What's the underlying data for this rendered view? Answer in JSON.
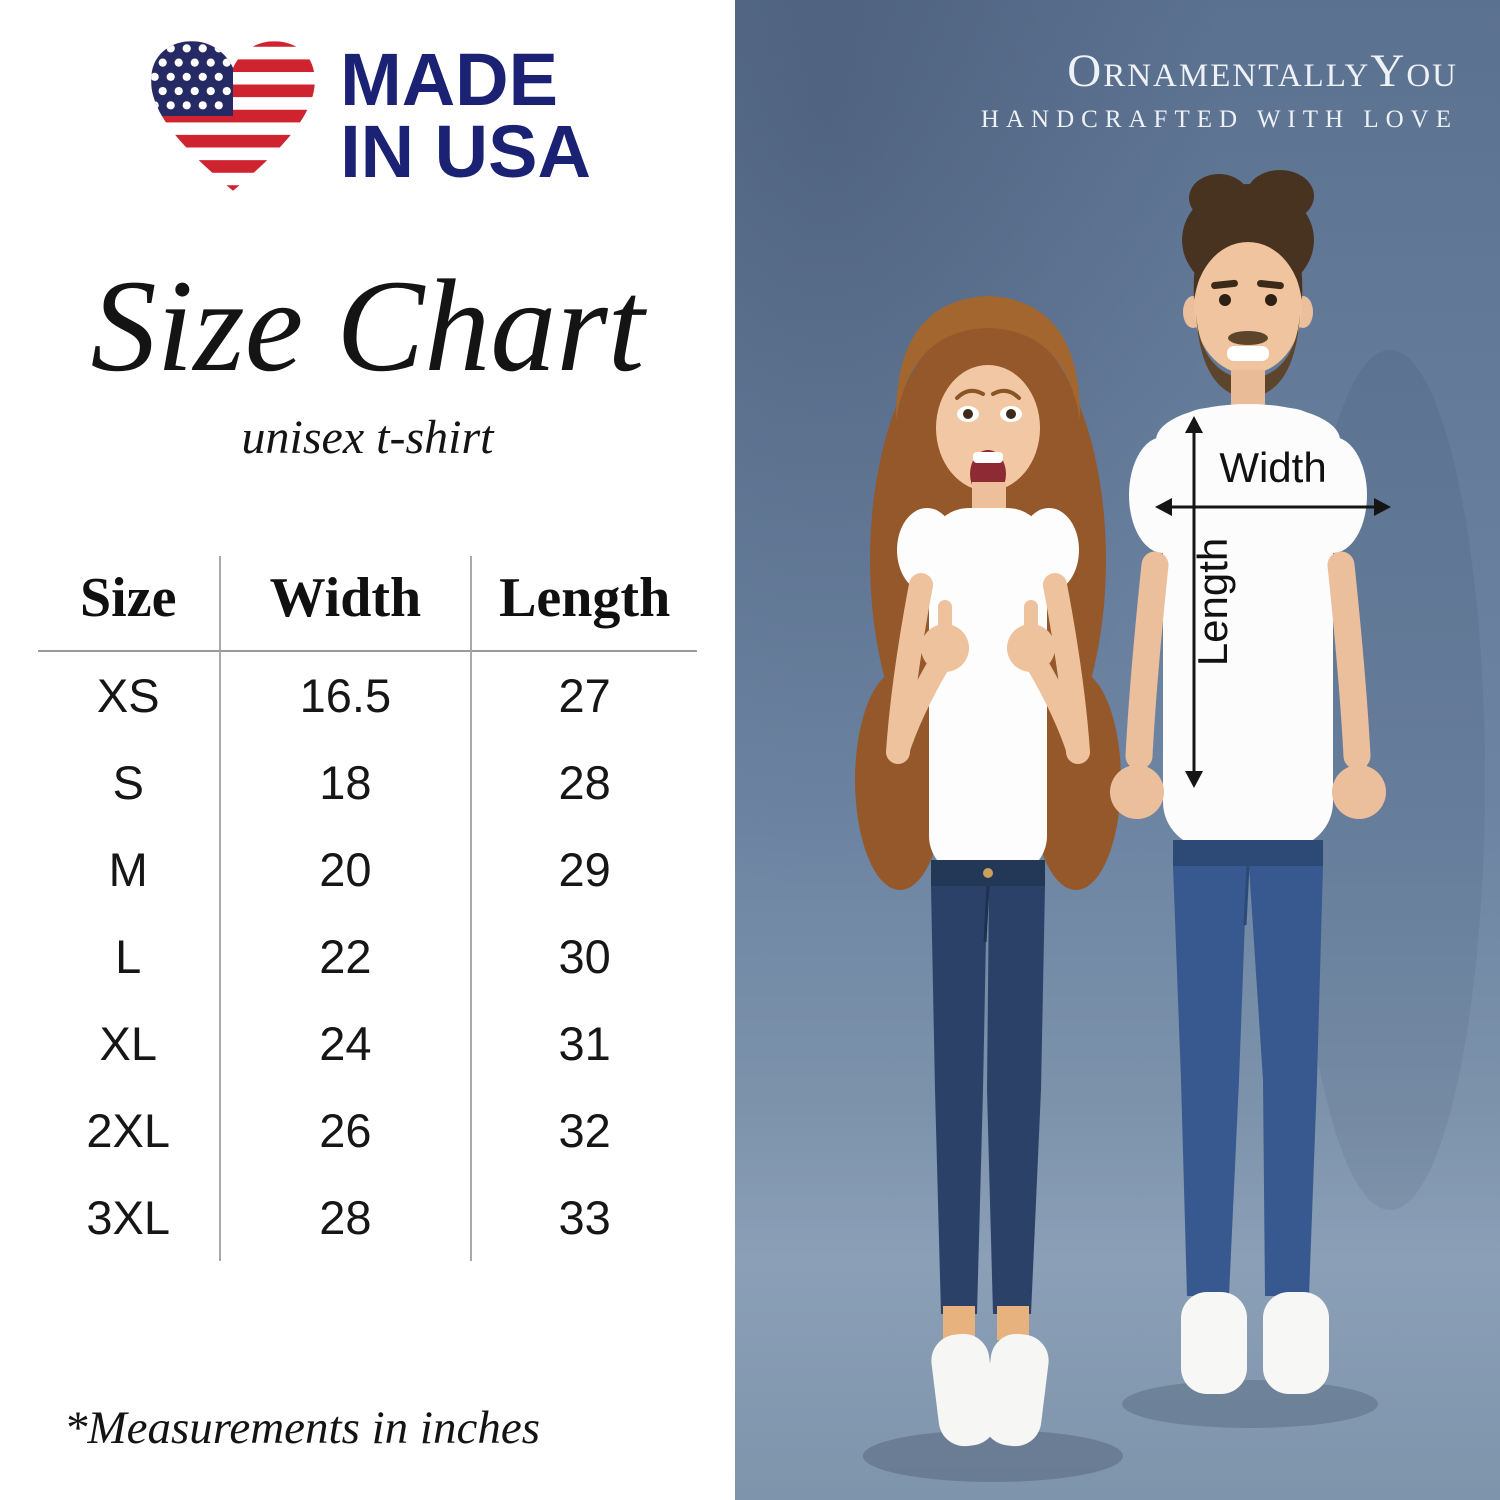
{
  "badge": {
    "line1": "MADE",
    "line2": "IN USA",
    "icon": "usa-flag-heart-icon",
    "flag_red": "#cf2430",
    "flag_blue": "#252a64",
    "text_navy": "#1b2173"
  },
  "title": "Size Chart",
  "subtitle": "unisex t-shirt",
  "footnote": "*Measurements in inches",
  "brand": {
    "name": "OrnamentallyYou",
    "tagline": "HANDCRAFTED WITH LOVE",
    "text_color": "#eef1f5"
  },
  "shirt_labels": {
    "width": "Width",
    "length": "Length"
  },
  "photo": {
    "background_top": "#5b7190",
    "background_bottom": "#7e94ab",
    "description": "man and woman in white t-shirts and blue jeans giving thumbs up"
  },
  "chart_data": {
    "type": "table",
    "title": "Size Chart",
    "subtitle": "unisex t-shirt",
    "columns": [
      "Size",
      "Width",
      "Length"
    ],
    "units": "inches",
    "rows": [
      [
        "XS",
        16.5,
        27
      ],
      [
        "S",
        18,
        28
      ],
      [
        "M",
        20,
        29
      ],
      [
        "L",
        22,
        30
      ],
      [
        "XL",
        24,
        31
      ],
      [
        "2XL",
        26,
        32
      ],
      [
        "3XL",
        28,
        33
      ]
    ],
    "footnote": "*Measurements in inches"
  }
}
